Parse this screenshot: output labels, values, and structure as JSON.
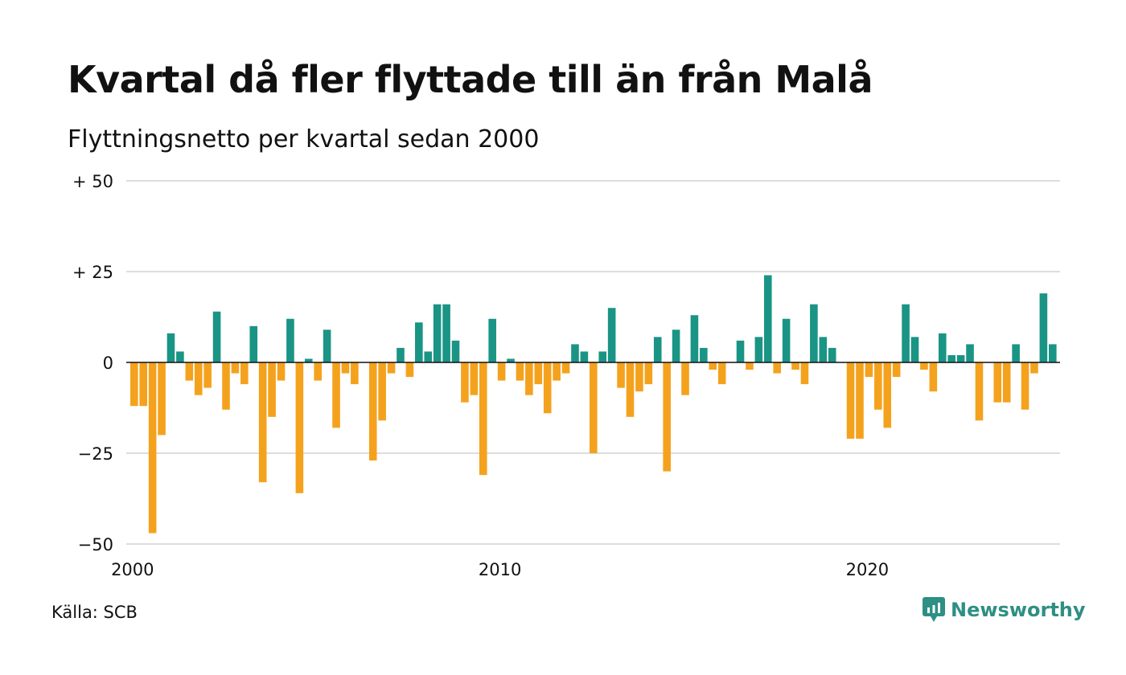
{
  "title": "Kvartal då fler flyttade till än från Malå",
  "subtitle": "Flyttningsnetto per kvartal sedan 2000",
  "source": "Källa: SCB",
  "brand": {
    "name": "Newsworthy",
    "icon": "newsworthy-logo-icon",
    "color": "#2e8f84"
  },
  "colors": {
    "positive": "#1a9485",
    "negative": "#f4a21d",
    "grid": "#dddddd",
    "baseline": "#111111"
  },
  "chart_data": {
    "type": "bar",
    "title": "Kvartal då fler flyttade till än från Malå",
    "subtitle": "Flyttningsnetto per kvartal sedan 2000",
    "x_start": "2000 Q1",
    "x_ticks": [
      "2000",
      "2010",
      "2020"
    ],
    "y_ticks": [
      "−50",
      "−25",
      "0",
      "+ 25",
      "+ 50"
    ],
    "y_tick_values": [
      -50,
      -25,
      0,
      25,
      50
    ],
    "ylim": [
      -50,
      50
    ],
    "grid": true,
    "values": [
      -12,
      -12,
      -47,
      -20,
      8,
      3,
      -5,
      -9,
      -7,
      14,
      -13,
      -3,
      -6,
      10,
      -33,
      -15,
      -5,
      12,
      -36,
      1,
      -5,
      9,
      -18,
      -3,
      -6,
      0,
      -27,
      -16,
      -3,
      4,
      -4,
      11,
      3,
      16,
      16,
      6,
      -11,
      -9,
      -31,
      12,
      -5,
      1,
      -5,
      -9,
      -6,
      -14,
      -5,
      -3,
      5,
      3,
      -25,
      3,
      15,
      -7,
      -15,
      -8,
      -6,
      7,
      -30,
      9,
      -9,
      13,
      4,
      -2,
      -6,
      0,
      6,
      -2,
      7,
      24,
      -3,
      12,
      -2,
      -6,
      16,
      7,
      4,
      0,
      -21,
      -21,
      -4,
      -13,
      -18,
      -4,
      16,
      7,
      -2,
      -8,
      8,
      2,
      2,
      5,
      -16,
      0,
      -11,
      -11,
      5,
      -13,
      -3,
      19,
      5
    ]
  }
}
